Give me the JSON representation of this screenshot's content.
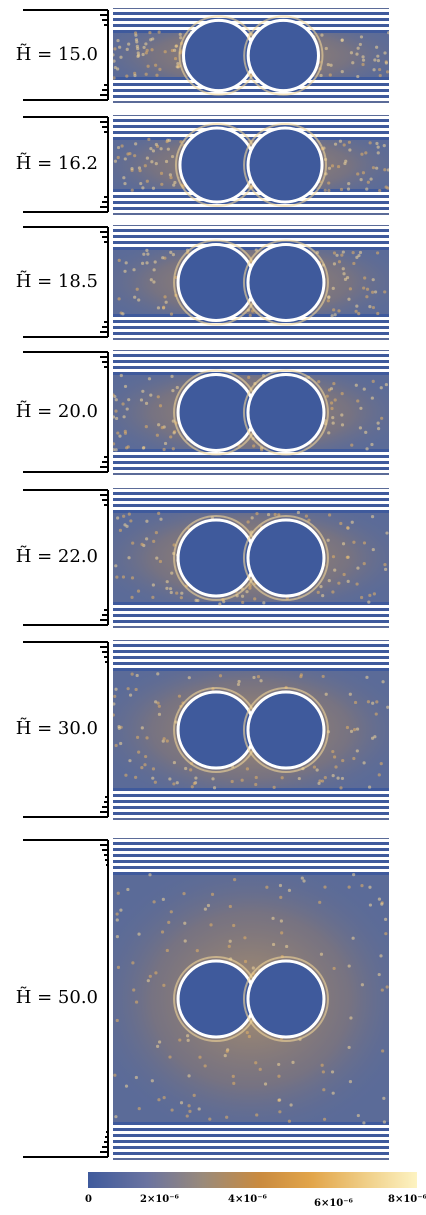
{
  "panels": [
    {
      "label": "H̃ = 15.0",
      "band_count": 4
    },
    {
      "label": "H̃ = 16.2",
      "band_count": 4
    },
    {
      "label": "H̃ = 18.5",
      "band_count": 4
    },
    {
      "label": "H̃ = 20.0",
      "band_count": 4
    },
    {
      "label": "H̃ = 22.0",
      "band_count": 4
    },
    {
      "label": "H̃ = 30.0",
      "band_count": 5
    },
    {
      "label": "H̃ = 50.0",
      "band_count": 6
    }
  ],
  "colorbar": {
    "ticks": [
      "0",
      "2×10⁻⁶",
      "4×10⁻⁶",
      "6×10⁻⁶",
      "8×10⁻⁶"
    ],
    "colors": [
      "#3f5a9c",
      "#9a8a7a",
      "#c98a3f",
      "#f0d08a",
      "#fdf3c2"
    ],
    "range": [
      0,
      8e-06
    ]
  }
}
